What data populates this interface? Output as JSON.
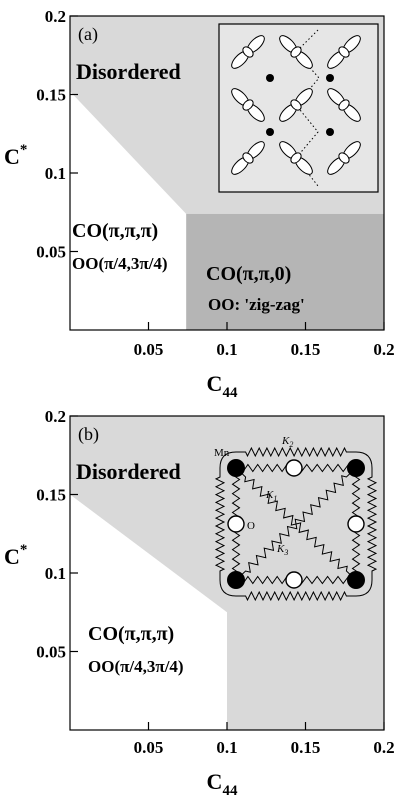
{
  "chart_data": [
    {
      "type": "phase-diagram",
      "panel_label": "(a)",
      "xlabel": "C",
      "xlabel_sub": "44",
      "ylabel": "C",
      "ylabel_sup": "*",
      "xlim": [
        0,
        0.2
      ],
      "ylim": [
        0,
        0.2
      ],
      "xticks": [
        0.05,
        0.1,
        0.15,
        0.2
      ],
      "xtick_labels": [
        "0.05",
        "0.1",
        "0.15",
        "0.2"
      ],
      "yticks": [
        0.05,
        0.1,
        0.15,
        0.2
      ],
      "ytick_labels": [
        "0.05",
        "0.1",
        "0.15",
        "0.2"
      ],
      "regions": [
        {
          "name": "Disordered",
          "lines": [
            "Disordered"
          ],
          "color": "#d9d9d9",
          "polygon": [
            [
              0,
              0.152
            ],
            [
              0.074,
              0.074
            ],
            [
              0.2,
              0.074
            ],
            [
              0.2,
              0.2
            ],
            [
              0,
              0.2
            ]
          ]
        },
        {
          "name": "CO-OO-zigzag",
          "lines": [
            "CO(π,π,0)",
            "OO: 'zig-zag'"
          ],
          "color": "#b5b5b5",
          "polygon": [
            [
              0.074,
              0
            ],
            [
              0.2,
              0
            ],
            [
              0.2,
              0.074
            ],
            [
              0.074,
              0.074
            ]
          ]
        },
        {
          "name": "CO-OO-pi",
          "lines": [
            "CO(π,π,π)",
            "OO(π/4,3π/4)"
          ],
          "color": "#ffffff",
          "polygon": []
        }
      ],
      "inset": "orbital-order"
    },
    {
      "type": "phase-diagram",
      "panel_label": "(b)",
      "xlabel": "C",
      "xlabel_sub": "44",
      "ylabel": "C",
      "ylabel_sup": "*",
      "xlim": [
        0,
        0.2
      ],
      "ylim": [
        0,
        0.2
      ],
      "xticks": [
        0.05,
        0.1,
        0.15,
        0.2
      ],
      "xtick_labels": [
        "0.05",
        "0.1",
        "0.15",
        "0.2"
      ],
      "yticks": [
        0.05,
        0.1,
        0.15,
        0.2
      ],
      "ytick_labels": [
        "0.05",
        "0.1",
        "0.15",
        "0.2"
      ],
      "regions": [
        {
          "name": "Disordered",
          "lines": [
            "Disordered"
          ],
          "color": "#d9d9d9",
          "polygon": [
            [
              0,
              0.15
            ],
            [
              0.1,
              0.075
            ],
            [
              0.1,
              0
            ],
            [
              0.2,
              0
            ],
            [
              0.2,
              0.2
            ],
            [
              0,
              0.2
            ]
          ]
        },
        {
          "name": "CO-OO-pi",
          "lines": [
            "CO(π,π,π)",
            "OO(π/4,3π/4)"
          ],
          "color": "#ffffff",
          "polygon": []
        }
      ],
      "inset": "spring-lattice",
      "inset_labels": {
        "mn": "Mn",
        "o": "O",
        "k1": "K",
        "k1_sub": "1",
        "k2": "K",
        "k2_sub": "2",
        "k3": "K",
        "k3_sub": "3"
      }
    }
  ]
}
